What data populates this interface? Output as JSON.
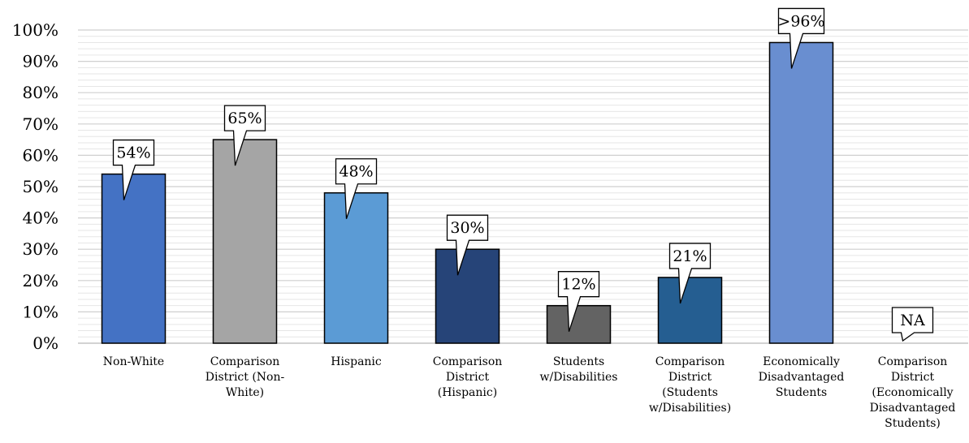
{
  "chart_data": {
    "type": "bar",
    "title": "",
    "xlabel": "",
    "ylabel": "",
    "ylim": [
      0,
      100
    ],
    "y_ticks": [
      "0%",
      "10%",
      "20%",
      "30%",
      "40%",
      "50%",
      "60%",
      "70%",
      "80%",
      "90%",
      "100%"
    ],
    "grid": true,
    "legend": "none",
    "categories": [
      "Non-White",
      "Comparison District (Non-White)",
      "Hispanic",
      "Comparison District (Hispanic)",
      "Students w/Disabilities",
      "Comparison District (Students w/Disabilities)",
      "Economically Disadvantaged Students",
      "Comparison District (Economically Disadvantaged Students)"
    ],
    "category_lines": [
      [
        "Non-White"
      ],
      [
        "Comparison",
        "District (Non-",
        "White)"
      ],
      [
        "Hispanic"
      ],
      [
        "Comparison",
        "District",
        "(Hispanic)"
      ],
      [
        "Students",
        "w/Disabilities"
      ],
      [
        "Comparison",
        "District",
        "(Students",
        "w/Disabilities)"
      ],
      [
        "Economically",
        "Disadvantaged",
        "Students"
      ],
      [
        "Comparison",
        "District",
        "(Economically",
        "Disadvantaged",
        "Students)"
      ]
    ],
    "values": [
      54,
      65,
      48,
      30,
      12,
      21,
      96,
      null
    ],
    "data_labels": [
      "54%",
      "65%",
      "48%",
      "30%",
      "12%",
      "21%",
      ">96%",
      "NA"
    ],
    "colors": [
      "#4472C4",
      "#A5A5A5",
      "#5B9BD5",
      "#264478",
      "#636363",
      "#255E91",
      "#698ED0",
      "#ffffff"
    ]
  }
}
